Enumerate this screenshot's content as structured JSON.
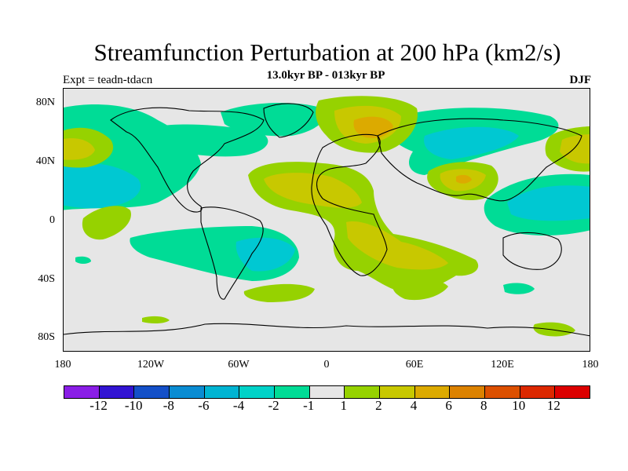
{
  "title": "Streamfunction Perturbation at 200 hPa (km2/s)",
  "subtitle": "13.0kyr BP - 013kyr BP",
  "left_label": "Expt = teadn-tdacn",
  "right_label": "DJF",
  "lat_ticks": [
    "80N",
    "40N",
    "0",
    "40S",
    "80S"
  ],
  "lon_ticks": [
    "180",
    "120W",
    "60W",
    "0",
    "60E",
    "120E",
    "180"
  ],
  "colorbar": {
    "colors": [
      "#8a1ee6",
      "#3214d2",
      "#1450c8",
      "#0a8cd2",
      "#00b4d2",
      "#00d2c8",
      "#00dc96",
      "#e6e6e6",
      "#96d200",
      "#c8c800",
      "#dcaa00",
      "#dc8200",
      "#dc5000",
      "#dc2800",
      "#dc0000"
    ],
    "labels": [
      "-12",
      "-10",
      "-8",
      "-6",
      "-4",
      "-2",
      "-1",
      "1",
      "2",
      "4",
      "6",
      "8",
      "10",
      "12"
    ]
  },
  "field": {
    "colors": {
      "pos1": "#96d200",
      "pos2": "#c8c800",
      "pos3": "#dcaa00",
      "neg1": "#00dc96",
      "neg2": "#00c8d2"
    }
  }
}
